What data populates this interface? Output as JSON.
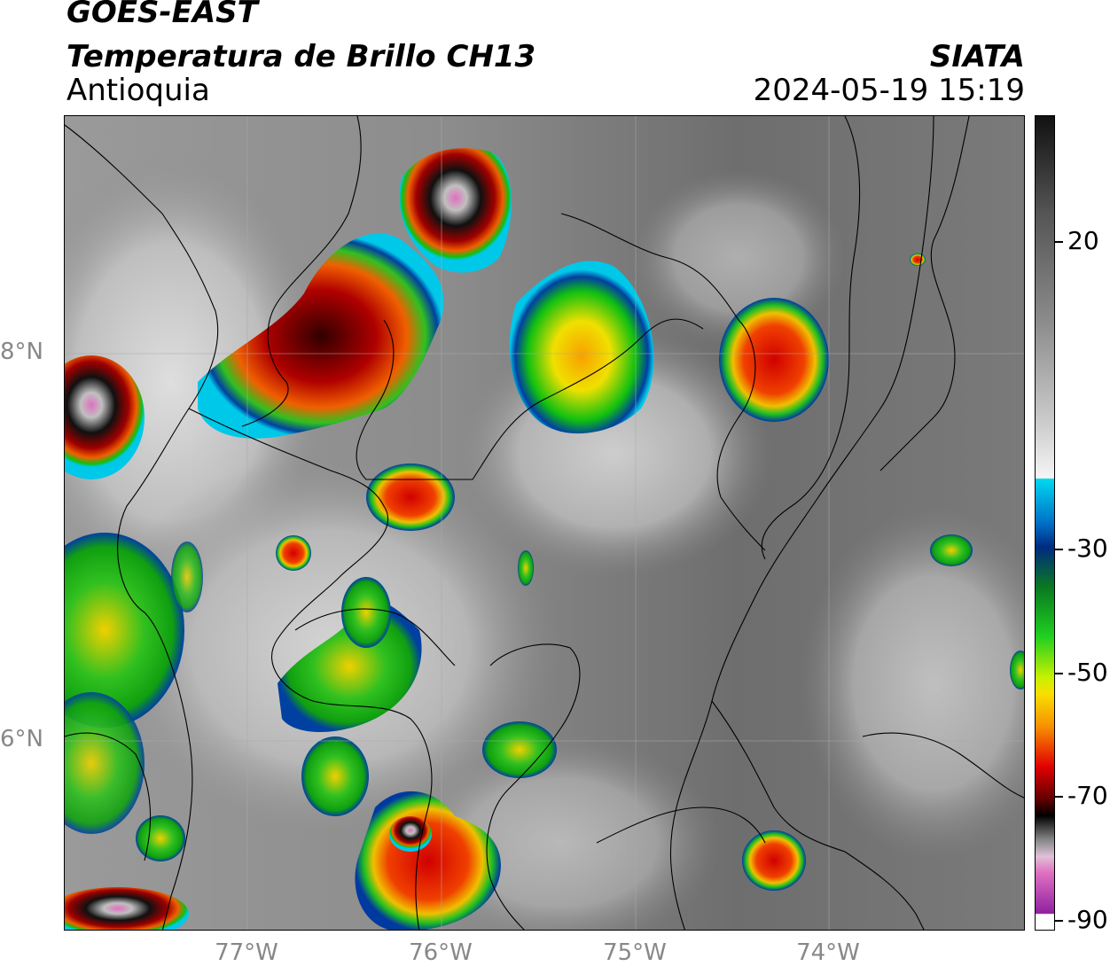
{
  "header": {
    "satellite": "GOES-EAST",
    "product": "Temperatura de Brillo CH13",
    "region": "Antioquia",
    "agency": "SIATA",
    "datetime": "2024-05-19 15:19"
  },
  "map": {
    "lat_labels": [
      "8°N",
      "6°N"
    ],
    "lon_labels": [
      "77°W",
      "76°W",
      "75°W",
      "74°W"
    ]
  },
  "colorbar": {
    "labels": [
      "20",
      "-30",
      "-50",
      "-70",
      "-90"
    ],
    "colors": {
      "warm_gray_top": "#111111",
      "white": "#f5f5f5",
      "cyan": "#00d8f0",
      "blue": "#003aa0",
      "green": "#10c010",
      "yellow": "#f8e000",
      "orange": "#f89000",
      "red": "#d00000",
      "dark_red": "#400000",
      "black": "#000000",
      "pink": "#e070c0",
      "purple": "#9020a0"
    }
  }
}
